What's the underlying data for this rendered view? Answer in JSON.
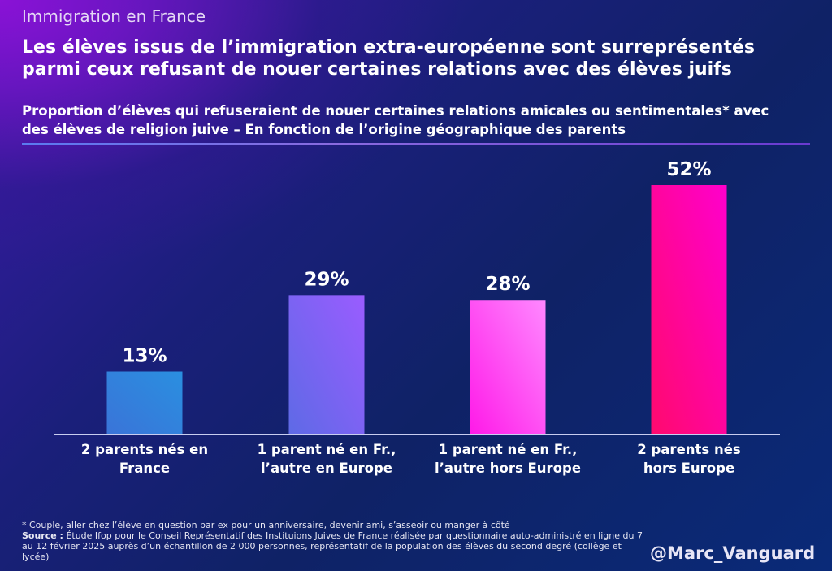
{
  "header": {
    "kicker": "Immigration en France",
    "title_line1": "Les élèves issus de l’immigration extra-européenne sont surreprésentés",
    "title_line2": "parmi ceux refusant de nouer certaines relations avec des élèves juifs",
    "subtitle_line1": "Proportion d’élèves qui refuseraient de nouer certaines relations amicales ou sentimentales* avec",
    "subtitle_line2": "des élèves de religion juive – En fonction de l’origine géographique des parents"
  },
  "chart_data": {
    "type": "bar",
    "title": "Proportion d’élèves qui refuseraient de nouer certaines relations amicales ou sentimentales* avec des élèves de religion juive – En fonction de l’origine géographique des parents",
    "xlabel": "",
    "ylabel": "",
    "ylim": [
      0,
      52
    ],
    "grid": false,
    "categories": [
      [
        "2 parents nés en",
        "France"
      ],
      [
        "1 parent né en Fr.,",
        "l’autre en Europe"
      ],
      [
        "1 parent né en Fr.,",
        "l’autre hors Europe"
      ],
      [
        "2 parents nés",
        "hors Europe"
      ]
    ],
    "values": [
      13,
      29,
      28,
      52
    ],
    "value_labels": [
      "13%",
      "29%",
      "28%",
      "52%"
    ],
    "unit": "%",
    "bar_colors": [
      [
        "#2a8fe0",
        "#3a74d8"
      ],
      [
        "#9a5cff",
        "#5e6ae6"
      ],
      [
        "#ff88ff",
        "#ff1ae8"
      ],
      [
        "#ff00cc",
        "#ff0a6e"
      ]
    ],
    "axis_color": "#c8cdf0"
  },
  "footer": {
    "footnote": "* Couple, aller chez l’élève en question par ex pour un anniversaire, devenir ami, s’asseoir ou manger à côté",
    "source_label": "Source :",
    "source_text": " Étude Ifop pour le Conseil Représentatif des Instituions Juives de France réalisée par questionnaire auto-administré en ligne du 7 au 12 février 2025 auprès d’un échantillon de 2 000 personnes, représentatif de la population des élèves du second degré (collège et lycée)",
    "handle": "@Marc_Vanguard"
  }
}
